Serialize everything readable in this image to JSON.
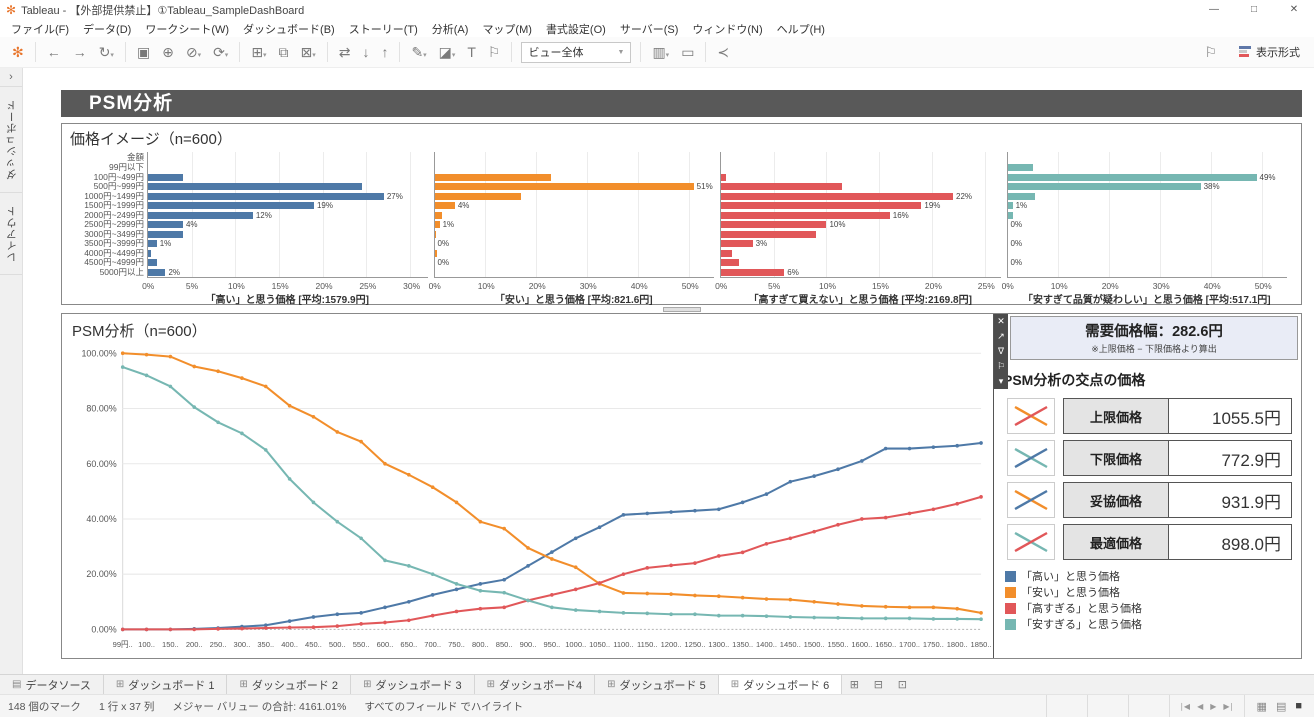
{
  "window": {
    "title": "Tableau - 【外部提供禁止】①Tableau_SampleDashBoard",
    "controls": {
      "minimize": "—",
      "maximize": "□",
      "close": "✕"
    }
  },
  "menu": {
    "items": [
      "ファイル(F)",
      "データ(D)",
      "ワークシート(W)",
      "ダッシュボード(B)",
      "ストーリー(T)",
      "分析(A)",
      "マップ(M)",
      "書式設定(O)",
      "サーバー(S)",
      "ウィンドウ(N)",
      "ヘルプ(H)"
    ]
  },
  "toolbar": {
    "groups": [
      [
        {
          "name": "tableau-logo-icon",
          "glyph": "✻"
        }
      ],
      [
        {
          "name": "back-icon",
          "glyph": "←"
        },
        {
          "name": "forward-icon",
          "glyph": "→"
        },
        {
          "name": "redo-icon",
          "glyph": "↻",
          "caret": true
        }
      ],
      [
        {
          "name": "save-icon",
          "glyph": "▣"
        },
        {
          "name": "new-data-source-icon",
          "glyph": "⊕"
        },
        {
          "name": "pause-auto-updates-icon",
          "glyph": "⊘",
          "caret": true
        },
        {
          "name": "refresh-data-icon",
          "glyph": "⟳",
          "caret": true
        }
      ],
      [
        {
          "name": "new-worksheet-icon",
          "glyph": "⊞",
          "caret": true
        },
        {
          "name": "duplicate-sheet-icon",
          "glyph": "⧉"
        },
        {
          "name": "clear-sheet-icon",
          "glyph": "⊠",
          "caret": true
        }
      ],
      [
        {
          "name": "swap-rows-columns-icon",
          "glyph": "⇄"
        },
        {
          "name": "sort-ascending-icon",
          "glyph": "↓"
        },
        {
          "name": "sort-descending-icon",
          "glyph": "↑"
        }
      ],
      [
        {
          "name": "show-mark-labels-icon",
          "glyph": "✎",
          "caret": true
        },
        {
          "name": "format-icon",
          "glyph": "◪",
          "caret": true
        },
        {
          "name": "show-text-icon",
          "glyph": "T"
        },
        {
          "name": "fix-axes-icon",
          "glyph": "⚐"
        }
      ],
      [
        {
          "type": "dropdown",
          "name": "fit-selector",
          "label": "ビュー全体"
        }
      ],
      [
        {
          "name": "show-hide-cards-icon",
          "glyph": "▥",
          "caret": true
        },
        {
          "name": "presentation-mode-icon",
          "glyph": "▭"
        }
      ],
      [
        {
          "name": "share-icon",
          "glyph": "≺"
        }
      ]
    ],
    "right": {
      "sheet_pane_icon_glyph": "⚐",
      "showme_label": "表示形式"
    }
  },
  "sidebar": {
    "chevron": "›",
    "tabs": [
      "ダッシュボード",
      "レイアウト"
    ]
  },
  "dashboard": {
    "title": "PSM分析",
    "panel": {
      "toolbar": [
        {
          "name": "close-panel-icon",
          "glyph": "✕"
        },
        {
          "name": "go-to-sheet-icon",
          "glyph": "↗"
        },
        {
          "name": "filter-icon",
          "glyph": "∇"
        },
        {
          "name": "pin-icon",
          "glyph": "⚐"
        },
        {
          "name": "more-options-icon",
          "glyph": "▾"
        }
      ],
      "demand": {
        "title": "需要価格幅：282.6円",
        "note": "※上限価格 − 下限価格より算出"
      },
      "intersections": {
        "title": "PSM分析の交点の価格",
        "rows": [
          {
            "label": "上限価格",
            "value": "1055.5円",
            "icon_colors": [
              "#f28e2b",
              "#e15759"
            ]
          },
          {
            "label": "下限価格",
            "value": "772.9円",
            "icon_colors": [
              "#76b7b2",
              "#4e79a7"
            ]
          },
          {
            "label": "妥協価格",
            "value": "931.9円",
            "icon_colors": [
              "#f28e2b",
              "#4e79a7"
            ]
          },
          {
            "label": "最適価格",
            "value": "898.0円",
            "icon_colors": [
              "#76b7b2",
              "#e15759"
            ]
          }
        ]
      },
      "legend": [
        {
          "label": "「高い」と思う価格",
          "color": "#4e79a7"
        },
        {
          "label": "「安い」と思う価格",
          "color": "#f28e2b"
        },
        {
          "label": "「高すぎる」と思う価格",
          "color": "#e15759"
        },
        {
          "label": "「安すぎる」と思う価格",
          "color": "#76b7b2"
        }
      ]
    }
  },
  "chart_data": [
    {
      "type": "bar",
      "orientation": "horizontal",
      "title": "価格イメージ（n=600）",
      "category_axis_label": "金額",
      "categories": [
        "99円以下",
        "100円~499円",
        "500円~999円",
        "1000円~1499円",
        "1500円~1999円",
        "2000円~2499円",
        "2500円~2999円",
        "3000円~3499円",
        "3500円~3999円",
        "4000円~4499円",
        "4500円~4999円",
        "5000円以上"
      ],
      "panels": [
        {
          "name": "「高い」と思う価格 [平均:1579.9円]",
          "color": "#4e79a7",
          "values": [
            0,
            4,
            24.5,
            27,
            19,
            12,
            4,
            4,
            1,
            0.3,
            1,
            2
          ],
          "bar_labels": [
            "",
            "",
            "",
            "27%",
            "19%",
            "12%",
            "4%",
            "",
            "1%",
            "",
            "",
            "2%"
          ],
          "ticks": [
            0,
            5,
            10,
            15,
            20,
            25,
            30
          ],
          "tick_labels": [
            "0%",
            "5%",
            "10%",
            "15%",
            "20%",
            "25%",
            "30%"
          ],
          "scale_max": 32
        },
        {
          "name": "「安い」と思う価格 [平均:821.6円]",
          "color": "#f28e2b",
          "values": [
            0,
            23,
            51,
            17,
            4,
            1.5,
            1,
            0.3,
            0,
            0.4,
            0,
            0
          ],
          "bar_labels": [
            "",
            "",
            "51%",
            "",
            "4%",
            "",
            "1%",
            "",
            "0%",
            "",
            "0%",
            ""
          ],
          "ticks": [
            0,
            10,
            20,
            30,
            40,
            50
          ],
          "tick_labels": [
            "0%",
            "10%",
            "20%",
            "30%",
            "40%",
            "50%"
          ],
          "scale_max": 55
        },
        {
          "name": "「高すぎて買えない」と思う価格 [平均:2169.8円]",
          "color": "#e15759",
          "values": [
            0,
            0.5,
            11.5,
            22,
            19,
            16,
            10,
            9,
            3,
            1,
            1.7,
            6
          ],
          "bar_labels": [
            "",
            "",
            "",
            "22%",
            "19%",
            "16%",
            "10%",
            "",
            "3%",
            "",
            "",
            "6%"
          ],
          "ticks": [
            0,
            5,
            10,
            15,
            20,
            25
          ],
          "tick_labels": [
            "0%",
            "5%",
            "10%",
            "15%",
            "20%",
            "25%"
          ],
          "scale_max": 26.5
        },
        {
          "name": "「安すぎて品質が疑わしい」と思う価格 [平均:517.1円]",
          "color": "#76b7b2",
          "values": [
            5,
            49,
            38,
            5.5,
            1,
            1,
            0,
            0,
            0,
            0,
            0,
            0
          ],
          "bar_labels": [
            "",
            "49%",
            "38%",
            "",
            "1%",
            "",
            "0%",
            "",
            "0%",
            "",
            "0%",
            ""
          ],
          "ticks": [
            0,
            10,
            20,
            30,
            40,
            50
          ],
          "tick_labels": [
            "0%",
            "10%",
            "20%",
            "30%",
            "40%",
            "50%"
          ],
          "scale_max": 55
        }
      ]
    },
    {
      "type": "line",
      "title": "PSM分析（n=600）",
      "ylim": [
        0,
        100
      ],
      "y_tick_labels": [
        "0.00%",
        "20.00%",
        "40.00%",
        "60.00%",
        "80.00%",
        "100.00%"
      ],
      "x_labels": [
        "99円..",
        "100..",
        "150..",
        "200..",
        "250..",
        "300..",
        "350..",
        "400..",
        "450..",
        "500..",
        "550..",
        "600..",
        "650..",
        "700..",
        "750..",
        "800..",
        "850..",
        "900..",
        "950..",
        "1000..",
        "1050..",
        "1100..",
        "1150..",
        "1200..",
        "1250..",
        "1300..",
        "1350..",
        "1400..",
        "1450..",
        "1500..",
        "1550..",
        "1600..",
        "1650..",
        "1700..",
        "1750..",
        "1800..",
        "1850.."
      ],
      "series": [
        {
          "name": "「高い」と思う価格",
          "color": "#4e79a7",
          "values": [
            0,
            0,
            0,
            0.2,
            0.5,
            1,
            1.5,
            3,
            4.5,
            5.5,
            6,
            8,
            10,
            12.5,
            14.5,
            16.5,
            18,
            23,
            28,
            33,
            37,
            41.5,
            42,
            42.5,
            43,
            43.5,
            46,
            49,
            53.5,
            55.5,
            58,
            61,
            65.5,
            65.5,
            66,
            66.5,
            67.5
          ]
        },
        {
          "name": "「安い」と思う価格",
          "color": "#f28e2b",
          "values": [
            100,
            99.5,
            98.8,
            95.2,
            93.5,
            91,
            88,
            81,
            77,
            71.5,
            68,
            60,
            56,
            51.5,
            46,
            39,
            36.5,
            29.5,
            25.5,
            22.5,
            16.5,
            13.2,
            13,
            12.8,
            12.3,
            12,
            11.5,
            11,
            10.8,
            10,
            9.2,
            8.5,
            8.2,
            8,
            8,
            7.5,
            6
          ]
        },
        {
          "name": "「高すぎる」と思う価格",
          "color": "#e15759",
          "values": [
            0,
            0,
            0,
            0,
            0.2,
            0.3,
            0.5,
            0.7,
            0.8,
            1.2,
            2,
            2.5,
            3.3,
            5,
            6.5,
            7.5,
            8,
            10.5,
            12.5,
            14.5,
            16.8,
            20,
            22.3,
            23.2,
            24,
            26.6,
            27.9,
            31,
            33,
            35.4,
            37.9,
            40,
            40.5,
            42,
            43.5,
            45.5,
            48
          ]
        },
        {
          "name": "「安すぎる」と思う価格",
          "color": "#76b7b2",
          "values": [
            95,
            92,
            88,
            80.5,
            75,
            71,
            65,
            54.5,
            46,
            39,
            33,
            25,
            23,
            20,
            16.5,
            14,
            13.3,
            10.5,
            8,
            7,
            6.5,
            6,
            5.8,
            5.5,
            5.5,
            5,
            5,
            4.8,
            4.5,
            4.3,
            4.2,
            4,
            4,
            4,
            3.8,
            3.8,
            3.7
          ]
        }
      ]
    }
  ],
  "sheet_tabs": {
    "tabs": [
      {
        "label": "データソース",
        "icon": "datasource",
        "active": false
      },
      {
        "label": "ダッシュボード 1",
        "icon": "dashboard",
        "active": false
      },
      {
        "label": "ダッシュボード 2",
        "icon": "dashboard",
        "active": false
      },
      {
        "label": "ダッシュボード 3",
        "icon": "dashboard",
        "active": false
      },
      {
        "label": "ダッシュボード4",
        "icon": "dashboard",
        "active": false
      },
      {
        "label": "ダッシュボード 5",
        "icon": "dashboard",
        "active": false
      },
      {
        "label": "ダッシュボード 6",
        "icon": "dashboard",
        "active": true
      }
    ],
    "new_buttons": [
      {
        "name": "new-worksheet-tab-button",
        "glyph": "⊞"
      },
      {
        "name": "new-dashboard-tab-button",
        "glyph": "⊟"
      },
      {
        "name": "new-story-tab-button",
        "glyph": "⊡"
      }
    ]
  },
  "status_bar": {
    "items": [
      "148 個のマーク",
      "1 行 x 37 列",
      "メジャー バリュー の合計: 4161.01%",
      "すべてのフィールド でハイライト"
    ],
    "nav_icons": [
      "∣◀",
      "◀",
      "▶",
      "▶∣"
    ],
    "view_icons": [
      {
        "name": "grid-view-icon",
        "glyph": "▦"
      },
      {
        "name": "filmstrip-view-icon",
        "glyph": "▤"
      },
      {
        "name": "fullscreen-icon",
        "glyph": "■",
        "dark": true
      }
    ]
  }
}
